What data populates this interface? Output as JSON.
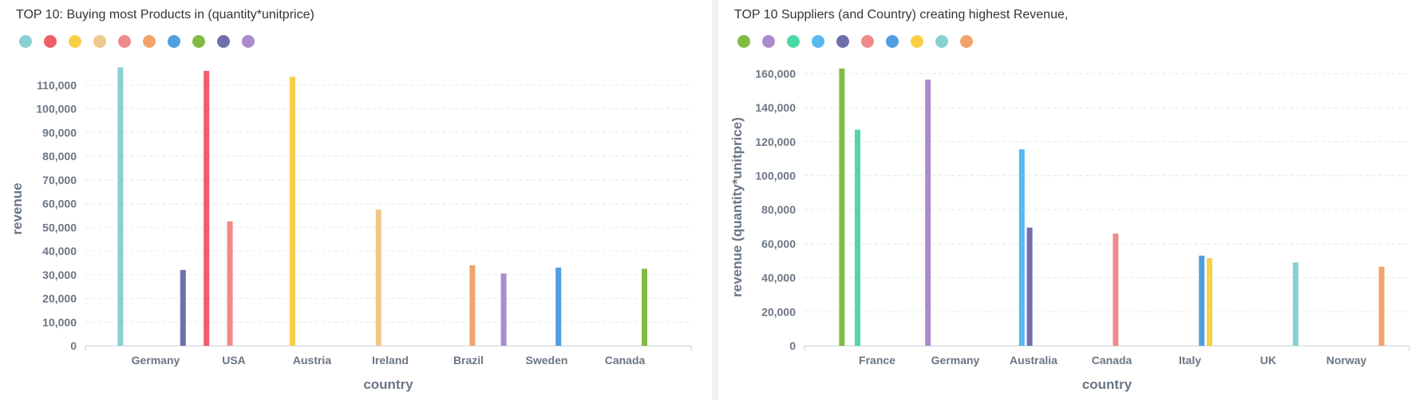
{
  "chart_data": [
    {
      "type": "bar",
      "title": "TOP 10: Buying most Products in (quantity*unitprice)",
      "xlabel": "country",
      "ylabel": "revenue",
      "ylim": [
        0,
        117000
      ],
      "yticks": [
        0,
        10000,
        20000,
        30000,
        40000,
        50000,
        60000,
        70000,
        80000,
        90000,
        100000,
        110000
      ],
      "categories": [
        "Germany",
        "USA",
        "Austria",
        "Ireland",
        "Brazil",
        "Sweden",
        "Canada"
      ],
      "grid": true,
      "legend_position": "top-left",
      "colors": [
        "#88d0d1",
        "#f05e68",
        "#f9cf48",
        "#efc98b",
        "#ef8b8c",
        "#f2a36b",
        "#4f9fe2",
        "#83bb42",
        "#6f6fac",
        "#a98bce"
      ],
      "series": [
        {
          "values": [
            117500,
            null,
            null,
            null,
            null,
            null,
            null
          ]
        },
        {
          "values": [
            null,
            116000,
            null,
            null,
            null,
            null,
            null
          ]
        },
        {
          "values": [
            null,
            null,
            113500,
            null,
            null,
            null,
            null
          ]
        },
        {
          "values": [
            null,
            null,
            null,
            57500,
            null,
            null,
            null
          ]
        },
        {
          "values": [
            null,
            52500,
            null,
            null,
            null,
            null,
            null
          ]
        },
        {
          "values": [
            null,
            null,
            null,
            null,
            34000,
            null,
            null
          ]
        },
        {
          "values": [
            null,
            null,
            null,
            null,
            null,
            33000,
            null
          ]
        },
        {
          "values": [
            null,
            null,
            null,
            null,
            null,
            null,
            32500
          ]
        },
        {
          "values": [
            32000,
            null,
            null,
            null,
            null,
            null,
            null
          ]
        },
        {
          "values": [
            null,
            null,
            null,
            null,
            30500,
            null,
            null
          ]
        }
      ]
    },
    {
      "type": "bar",
      "title": "TOP 10 Suppliers (and Country) creating highest Revenue,",
      "xlabel": "country",
      "ylabel": "revenue (quantity*unitprice)",
      "ylim": [
        0,
        163000
      ],
      "yticks": [
        0,
        20000,
        40000,
        60000,
        80000,
        100000,
        120000,
        140000,
        160000
      ],
      "categories": [
        "France",
        "Germany",
        "Australia",
        "Canada",
        "Italy",
        "UK",
        "Norway"
      ],
      "grid": true,
      "legend_position": "top-left",
      "colors": [
        "#83bb42",
        "#a98bce",
        "#4dd9a6",
        "#58b9ef",
        "#6f6fac",
        "#ef8b8c",
        "#4f9fe2",
        "#f9cf48",
        "#88d0d1",
        "#f2a36b"
      ],
      "series": [
        {
          "values": [
            163000,
            null,
            null,
            null,
            null,
            null,
            null
          ]
        },
        {
          "values": [
            null,
            156500,
            null,
            null,
            null,
            null,
            null
          ]
        },
        {
          "values": [
            127000,
            null,
            null,
            null,
            null,
            null,
            null
          ]
        },
        {
          "values": [
            null,
            null,
            115500,
            null,
            null,
            null,
            null
          ]
        },
        {
          "values": [
            null,
            null,
            69500,
            null,
            null,
            null,
            null
          ]
        },
        {
          "values": [
            null,
            null,
            null,
            66000,
            null,
            null,
            null
          ]
        },
        {
          "values": [
            null,
            null,
            null,
            null,
            53000,
            null,
            null
          ]
        },
        {
          "values": [
            null,
            null,
            null,
            null,
            51500,
            null,
            null
          ]
        },
        {
          "values": [
            null,
            null,
            null,
            null,
            null,
            49000,
            null
          ]
        },
        {
          "values": [
            null,
            null,
            null,
            null,
            null,
            null,
            46500
          ]
        }
      ]
    }
  ]
}
